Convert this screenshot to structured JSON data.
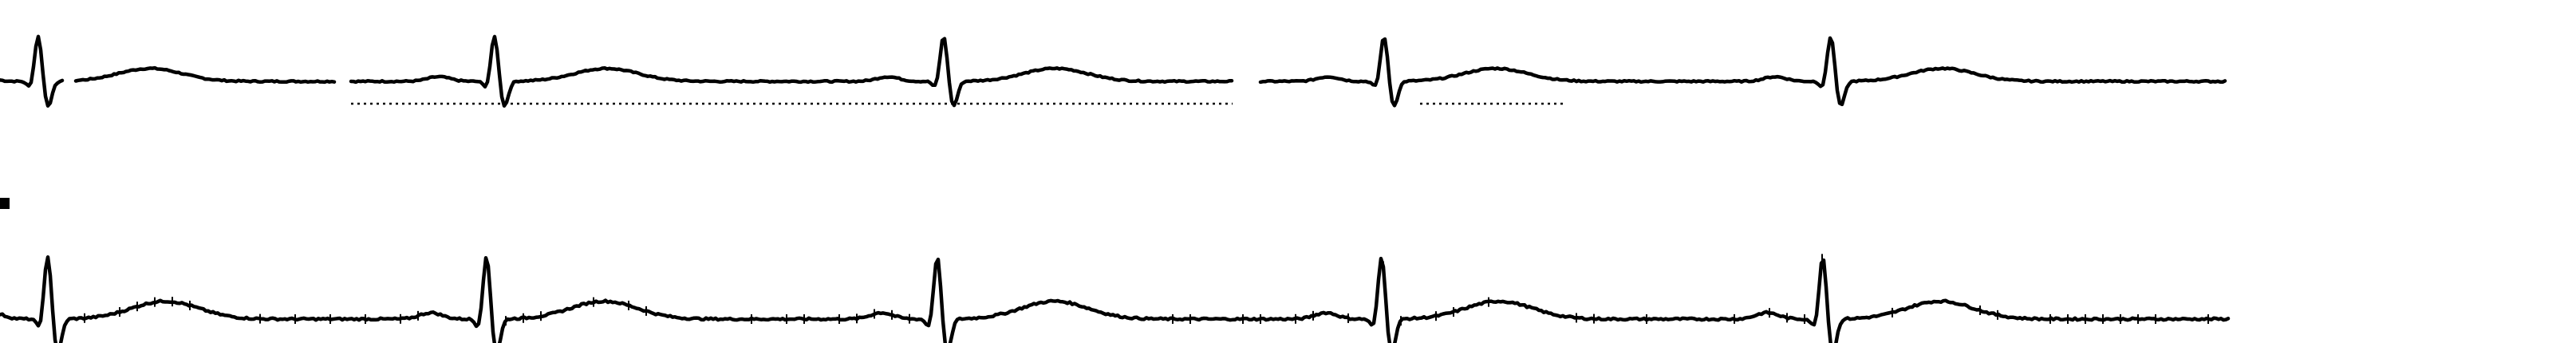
{
  "chart_data": {
    "type": "line",
    "title": "",
    "xlabel": "",
    "ylabel": "",
    "grid": false,
    "legend": "none",
    "colors": {
      "trace": "#000000",
      "background": "#ffffff"
    },
    "strips": [
      {
        "name": "",
        "beats_visible": 5,
        "segments": [
          {
            "x_range": [
              0,
              80
            ],
            "kind": "partial-complex"
          },
          {
            "x_range": [
              95,
              420
            ],
            "kind": "t-wave-only"
          },
          {
            "x_range": [
              440,
              1545
            ],
            "kind": "two-beats",
            "dotted_baseline": true
          },
          {
            "x_range": [
              1580,
              2790
            ],
            "kind": "two-beats"
          }
        ],
        "r_peaks_x": [
          48,
          620,
          1183,
          1735,
          2295
        ],
        "y_range": [
          -1.2,
          1.2
        ]
      },
      {
        "name": "",
        "beats_visible": 5,
        "r_peaks_x": [
          60,
          610,
          1175,
          1732,
          2285
        ],
        "y_range": [
          -1.2,
          1.6
        ]
      }
    ]
  }
}
